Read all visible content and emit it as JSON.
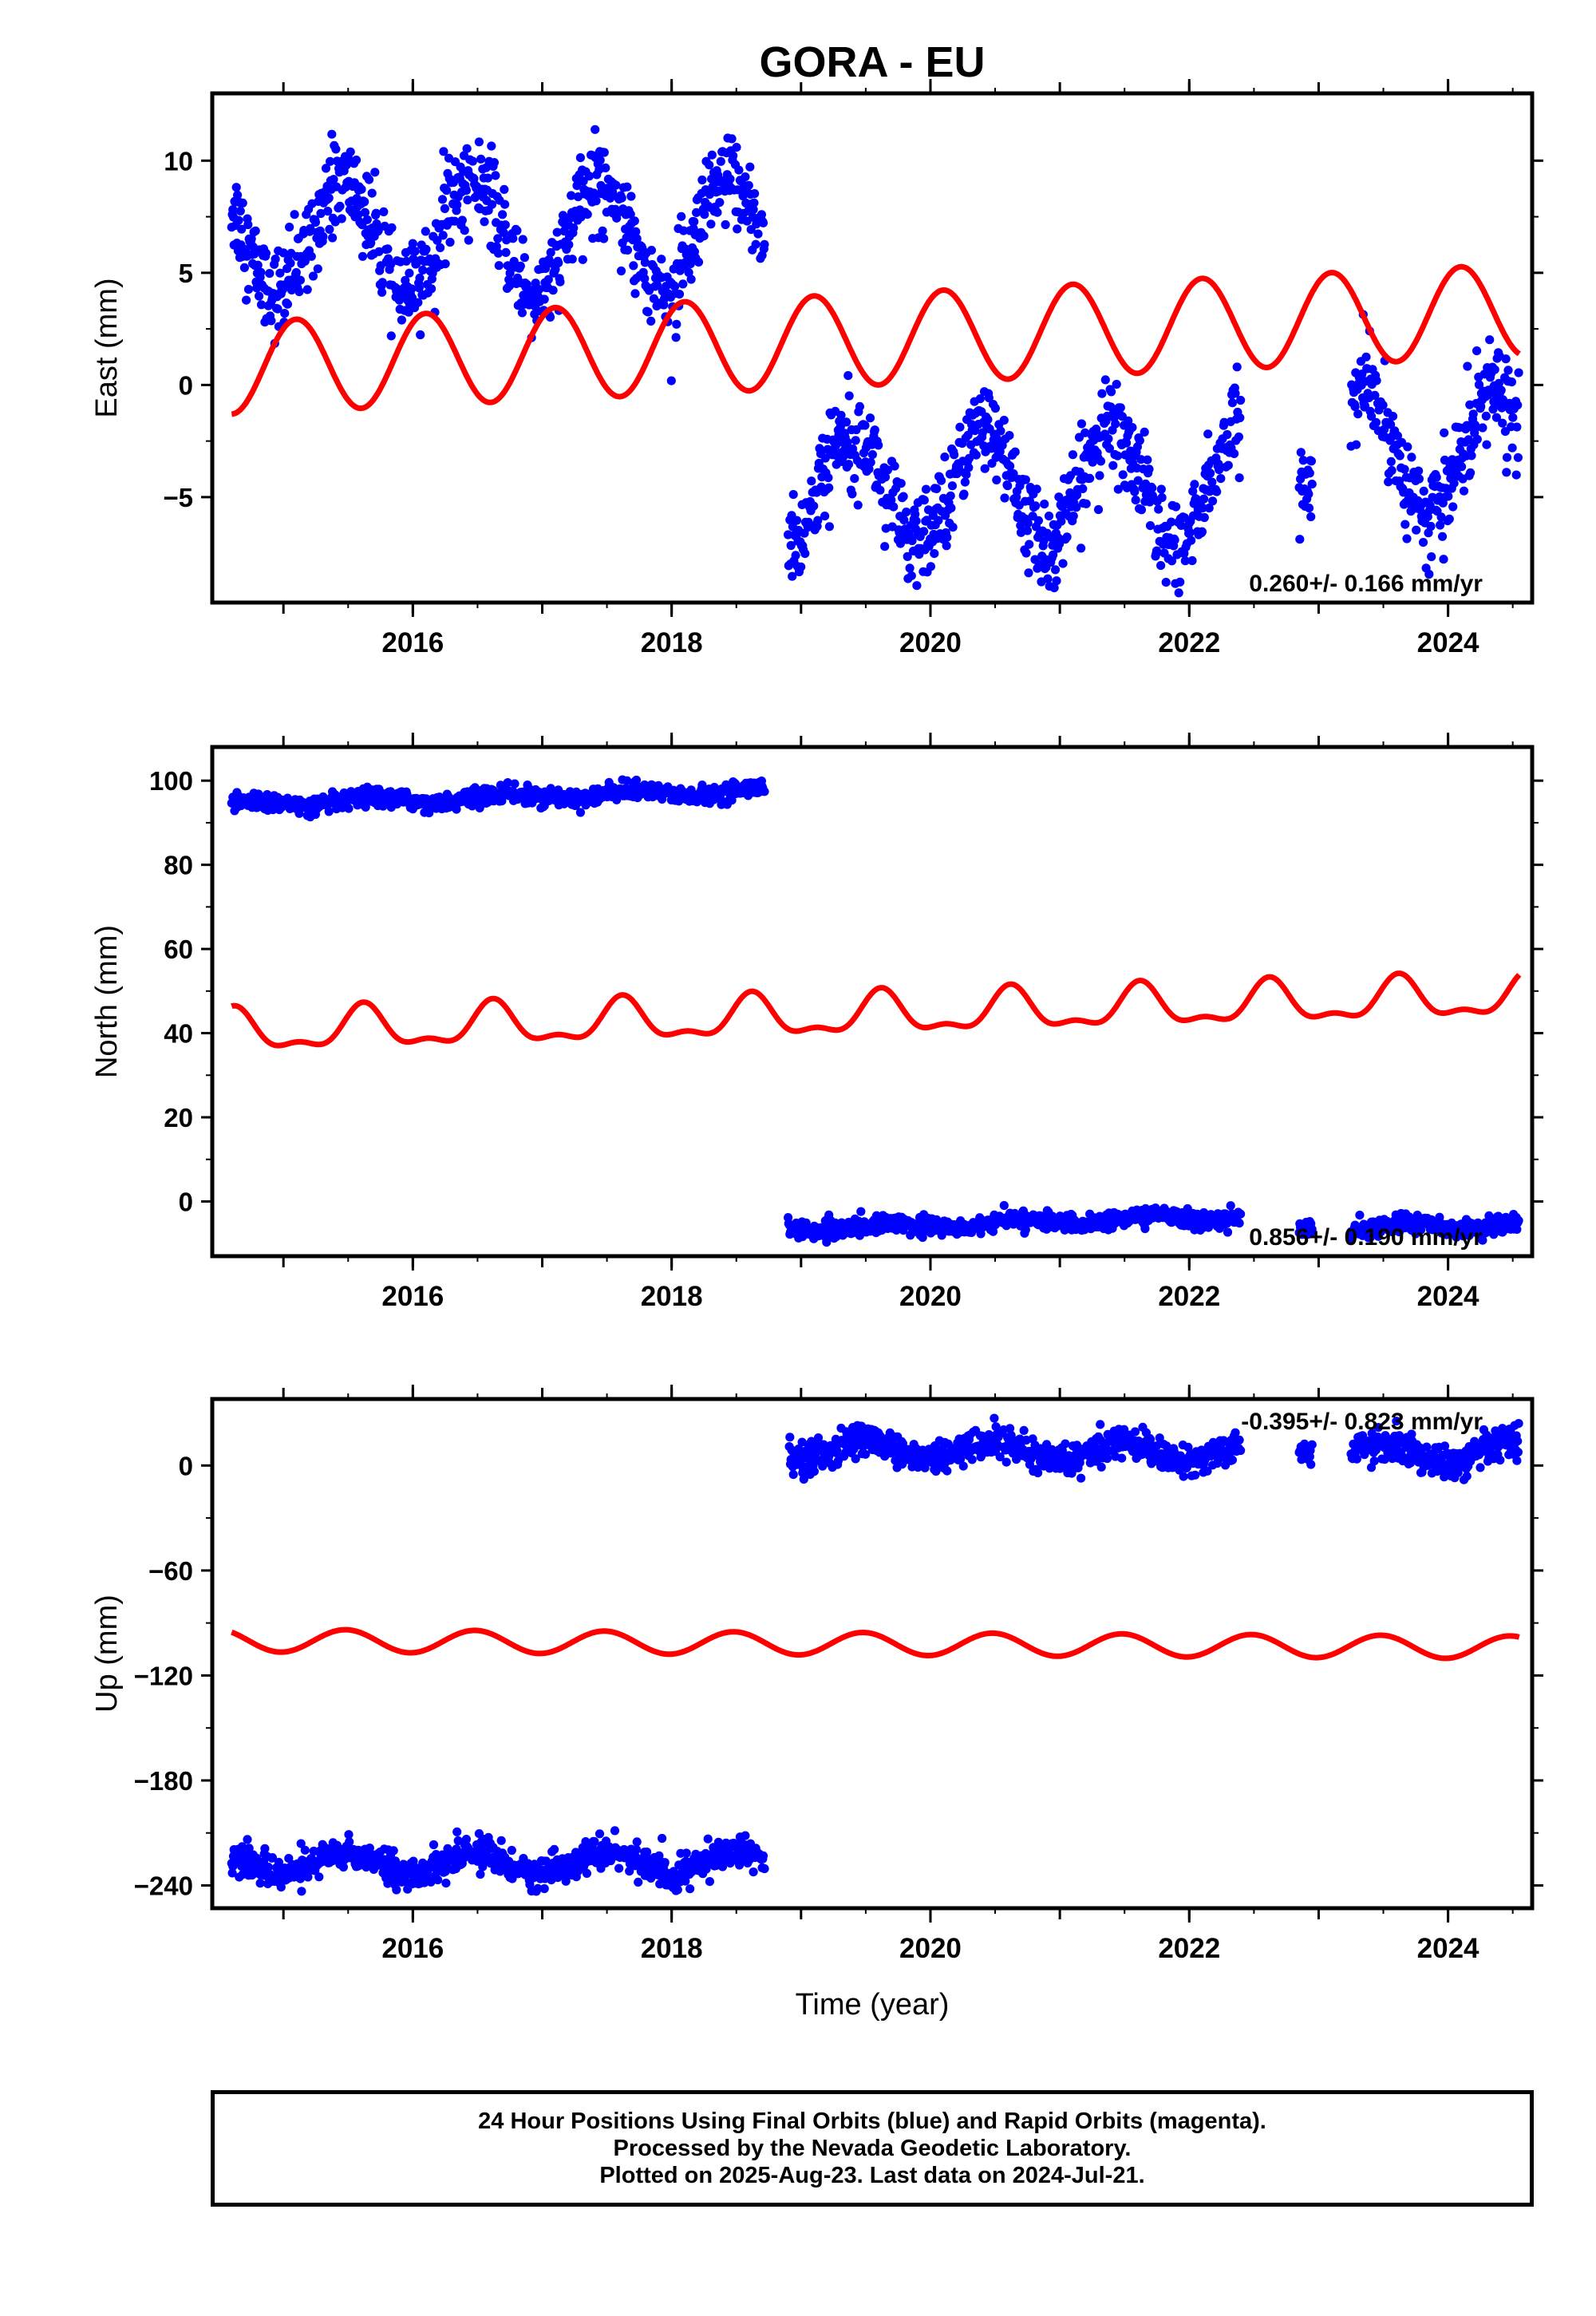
{
  "title": "GORA - EU",
  "chart_data": [
    {
      "type": "scatter",
      "ylabel": "East (mm)",
      "xlabel": "",
      "xlim": [
        2014.45,
        2024.65
      ],
      "ylim": [
        -9.7,
        13.0
      ],
      "yticks": [
        -5,
        0,
        5,
        10
      ],
      "yticklabels": [
        "−5",
        "0",
        "5",
        "10"
      ],
      "xticks": [
        2016,
        2018,
        2020,
        2022,
        2024
      ],
      "xticklabels": [
        "2016",
        "2018",
        "2020",
        "2022",
        "2024"
      ],
      "rate_label": "0.260+/- 0.166 mm/yr",
      "series": [
        {
          "kind": "observations",
          "color": "#0000ff",
          "segments": [
            {
              "t0": 2014.6,
              "t1": 2018.72,
              "base": 6.6,
              "amp": 2.5,
              "peak": 0.45,
              "noise": 1.0
            },
            {
              "t0": 2018.9,
              "t1": 2022.4,
              "base": -4.5,
              "amp": 2.6,
              "peak": 0.4,
              "noise": 1.0
            },
            {
              "t0": 2022.85,
              "t1": 2022.95,
              "base": -4.5,
              "amp": 0.0,
              "peak": 0.0,
              "noise": 1.0
            },
            {
              "t0": 2023.25,
              "t1": 2024.55,
              "base": -3.0,
              "amp": 2.8,
              "peak": 0.35,
              "noise": 1.0
            }
          ]
        },
        {
          "kind": "model",
          "color": "#ff0000",
          "offset": 0.75,
          "rate": 0.26,
          "amp": 2.05,
          "phase": 0.1
        }
      ]
    },
    {
      "type": "scatter",
      "ylabel": "North (mm)",
      "xlabel": "",
      "xlim": [
        2014.45,
        2024.65
      ],
      "ylim": [
        -13.0,
        108.0
      ],
      "yticks": [
        0,
        20,
        40,
        60,
        80,
        100
      ],
      "yticklabels": [
        "0",
        "20",
        "40",
        "60",
        "80",
        "100"
      ],
      "xticks": [
        2016,
        2018,
        2020,
        2022,
        2024
      ],
      "xticklabels": [
        "2016",
        "2018",
        "2020",
        "2022",
        "2024"
      ],
      "rate_label": "0.856+/- 0.190 mm/yr",
      "series": [
        {
          "kind": "observations",
          "color": "#0000ff",
          "segments": [
            {
              "t0": 2014.6,
              "t1": 2018.72,
              "base": 94.2,
              "trend": 0.85,
              "amp": 0.8,
              "peak": 0.7,
              "noise": 1.0
            },
            {
              "t0": 2018.9,
              "t1": 2022.4,
              "base": -6.5,
              "trend": 0.85,
              "amp": 0.8,
              "peak": 0.7,
              "noise": 1.0
            },
            {
              "t0": 2022.85,
              "t1": 2022.95,
              "base": -6.5,
              "trend": 0.85,
              "amp": 0.0,
              "peak": 0.0,
              "noise": 1.0
            },
            {
              "t0": 2023.25,
              "t1": 2024.55,
              "base": -6.5,
              "trend": 0.85,
              "amp": 0.8,
              "peak": 0.7,
              "noise": 1.0
            }
          ]
        },
        {
          "kind": "model",
          "color": "#ff0000",
          "offset": 40.0,
          "rate": 0.856,
          "amp": 4.5,
          "phase": 0.62,
          "amp2": 2.0
        }
      ]
    },
    {
      "type": "scatter",
      "ylabel": "Up (mm)",
      "xlabel": "Time (year)",
      "xlim": [
        2014.45,
        2024.65
      ],
      "ylim": [
        -253.0,
        38.0
      ],
      "yticks": [
        -240,
        -180,
        -120,
        -60,
        0
      ],
      "yticklabels": [
        "−240",
        "−180",
        "−120",
        "−60",
        "0"
      ],
      "xticks": [
        2016,
        2018,
        2020,
        2022,
        2024
      ],
      "xticklabels": [
        "2016",
        "2018",
        "2020",
        "2022",
        "2024"
      ],
      "rate_label": "-0.395+/- 0.823 mm/yr",
      "series": [
        {
          "kind": "observations",
          "color": "#0000ff",
          "segments": [
            {
              "t0": 2014.6,
              "t1": 2018.72,
              "base": -227.0,
              "trend": 0.0,
              "amp": 6.0,
              "peak": 0.5,
              "noise": 4.5
            },
            {
              "t0": 2018.9,
              "t1": 2022.4,
              "base": 9.0,
              "trend": -0.4,
              "amp": 6.0,
              "peak": 0.5,
              "noise": 4.5
            },
            {
              "t0": 2022.85,
              "t1": 2022.95,
              "base": 9.0,
              "trend": 0.0,
              "amp": 0.0,
              "peak": 0.0,
              "noise": 4.5
            },
            {
              "t0": 2023.25,
              "t1": 2024.55,
              "base": 7.0,
              "trend": -0.4,
              "amp": 6.0,
              "peak": 0.5,
              "noise": 4.5
            }
          ]
        },
        {
          "kind": "model",
          "color": "#ff0000",
          "offset": -100.0,
          "rate": -0.395,
          "amp": 6.5,
          "phase": 0.48
        }
      ]
    }
  ],
  "footer": {
    "line1": "24 Hour Positions Using Final Orbits (blue) and Rapid Orbits (magenta).",
    "line2": "Processed by the Nevada Geodetic Laboratory.",
    "line3": "Plotted on 2025-Aug-23. Last data on 2024-Jul-21."
  }
}
